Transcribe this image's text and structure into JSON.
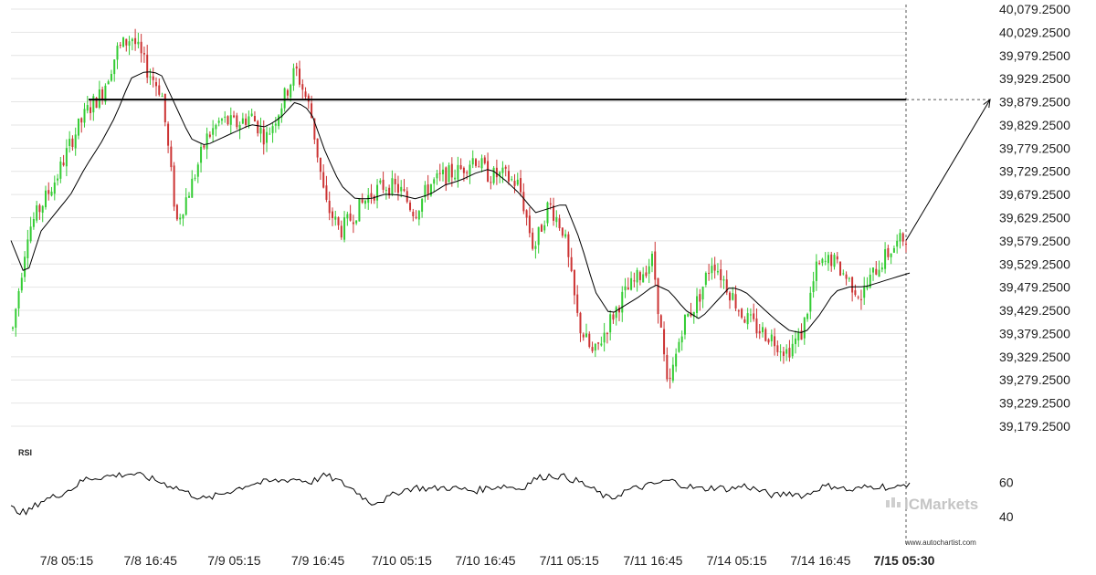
{
  "chart_data": {
    "type": "candlestick",
    "instrument_hint": "",
    "y_axis": {
      "ticks": [
        "40,079.2500",
        "40,029.2500",
        "39,979.2500",
        "39,929.2500",
        "39,879.2500",
        "39,829.2500",
        "39,779.2500",
        "39,729.2500",
        "39,679.2500",
        "39,629.2500",
        "39,579.2500",
        "39,529.2500",
        "39,479.2500",
        "39,429.2500",
        "39,379.2500",
        "39,329.2500",
        "39,279.2500",
        "39,229.2500",
        "39,179.2500"
      ],
      "range": [
        39179.25,
        40079.25
      ]
    },
    "x_axis": {
      "ticks": [
        "7/8 05:15",
        "7/8 16:45",
        "7/9 05:15",
        "7/9 16:45",
        "7/10 05:15",
        "7/10 16:45",
        "7/11 05:15",
        "7/11 16:45",
        "7/14 05:15",
        "7/14 16:45",
        "7/15 05:30"
      ],
      "highlighted_tick": "7/15 05:30"
    },
    "resistance_level": 39884,
    "projection": {
      "from_price": 39580,
      "to_price": 39884,
      "direction": "up"
    },
    "price_path": [
      39390,
      39600,
      39660,
      39720,
      39800,
      39860,
      39900,
      39990,
      40020,
      39950,
      39900,
      39620,
      39700,
      39800,
      39840,
      39830,
      39850,
      39800,
      39870,
      39950,
      39860,
      39660,
      39600,
      39640,
      39680,
      39700,
      39690,
      39640,
      39700,
      39720,
      39730,
      39760,
      39720,
      39720,
      39700,
      39560,
      39660,
      39600,
      39400,
      39330,
      39400,
      39460,
      39500,
      39540,
      39250,
      39400,
      39450,
      39540,
      39480,
      39420,
      39390,
      39370,
      39340,
      39380,
      39520,
      39540,
      39500,
      39460,
      39520,
      39560,
      39590
    ],
    "moving_average_path": [
      39580,
      39500,
      39600,
      39640,
      39680,
      39740,
      39790,
      39850,
      39930,
      39945,
      39940,
      39870,
      39800,
      39785,
      39800,
      39815,
      39830,
      39825,
      39845,
      39880,
      39860,
      39770,
      39700,
      39670,
      39670,
      39680,
      39678,
      39670,
      39680,
      39700,
      39710,
      39725,
      39735,
      39710,
      39680,
      39640,
      39650,
      39660,
      39580,
      39470,
      39420,
      39440,
      39460,
      39485,
      39470,
      39430,
      39410,
      39445,
      39480,
      39470,
      39440,
      39410,
      39385,
      39380,
      39420,
      39470,
      39480,
      39480,
      39490,
      39500,
      39510
    ],
    "rsi": {
      "label": "RSI",
      "ticks": [
        "60",
        "40"
      ],
      "range": [
        30,
        75
      ],
      "values": [
        45,
        42,
        49,
        52,
        56,
        62,
        63,
        64,
        65,
        63,
        60,
        57,
        53,
        50,
        53,
        56,
        59,
        60,
        61,
        62,
        60,
        64,
        60,
        55,
        48,
        50,
        55,
        57,
        56,
        57,
        56,
        55,
        57,
        58,
        56,
        62,
        64,
        63,
        60,
        55,
        50,
        55,
        57,
        59,
        61,
        58,
        56,
        57,
        56,
        58,
        55,
        52,
        54,
        52,
        57,
        58,
        55,
        57,
        58,
        56,
        60
      ]
    }
  },
  "branding": {
    "logo_text": "ICMarkets",
    "watermark": "www.autochartist.com"
  },
  "colors": {
    "up_candle": "#33cc33",
    "down_candle": "#cc3333",
    "line": "#000000",
    "grid": "#e4e4e4",
    "projection": "#000000"
  }
}
